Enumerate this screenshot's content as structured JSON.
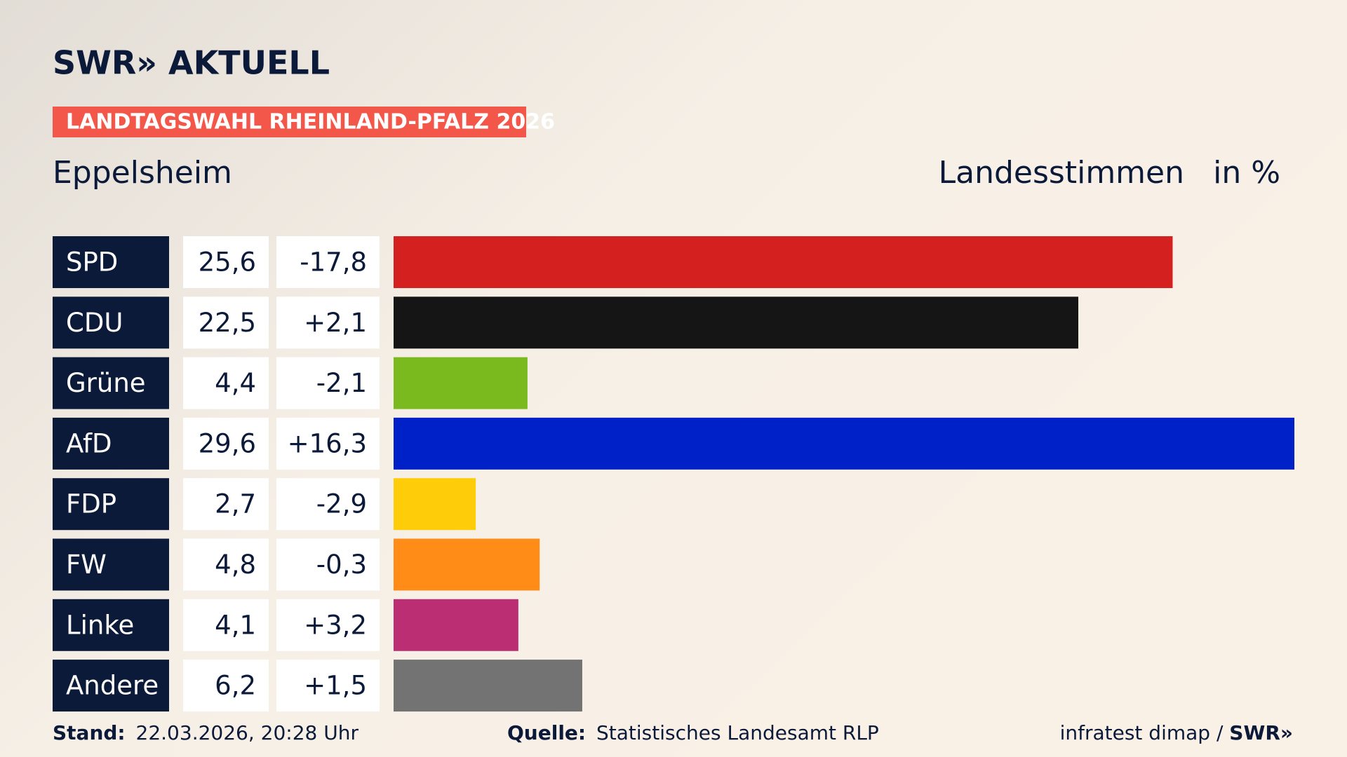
{
  "logo": "SWR» AKTUELL",
  "chart_data": {
    "type": "bar",
    "orientation": "horizontal",
    "title": "LANDTAGSWAHL RHEINLAND-PFALZ 2026",
    "subtitle": "Eppelsheim",
    "measure_label": "Landesstimmen",
    "unit_label": "in %",
    "categories": [
      "SPD",
      "CDU",
      "Grüne",
      "AfD",
      "FDP",
      "FW",
      "Linke",
      "Andere"
    ],
    "values": [
      25.6,
      22.5,
      4.4,
      29.6,
      2.7,
      4.8,
      4.1,
      6.2
    ],
    "value_labels": [
      "25,6",
      "22,5",
      "4,4",
      "29,6",
      "2,7",
      "4,8",
      "4,1",
      "6,2"
    ],
    "changes": [
      "-17,8",
      "+2,1",
      "-2,1",
      "+16,3",
      "-2,9",
      "-0,3",
      "+3,2",
      "+1,5"
    ],
    "colors": [
      "#d52020",
      "#151515",
      "#7aba1e",
      "#0021c8",
      "#ffcc0a",
      "#ff8c16",
      "#bb2e74",
      "#737373"
    ]
  },
  "footer": {
    "stand_label": "Stand:",
    "stand": "22.03.2026, 20:28 Uhr",
    "source_label": "Quelle:",
    "source": "Statistisches Landesamt RLP",
    "credit": "infratest dimap / ",
    "credit_logo": "SWR»"
  }
}
